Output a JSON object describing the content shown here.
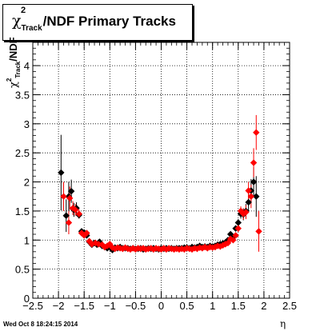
{
  "chart_data": {
    "type": "scatter",
    "title_main": "/NDF  Primary Tracks",
    "title_symbol": "χ",
    "title_sup": "2",
    "title_sub": "Track",
    "ylabel_symbol": "χ",
    "ylabel_sup": "2",
    "ylabel_sub": "Track",
    "ylabel_rest": "/NDF",
    "xlabel": "η",
    "xlim": [
      -2.5,
      2.5
    ],
    "ylim": [
      0,
      4.4
    ],
    "xticks": [
      -2.5,
      -2,
      -1.5,
      -1,
      -0.5,
      0,
      0.5,
      1,
      1.5,
      2,
      2.5
    ],
    "xtick_labels": [
      "−2.5",
      "−2",
      "−1.5",
      "−1",
      "−0.5",
      "0",
      "0.5",
      "1",
      "1.5",
      "2",
      "2.5"
    ],
    "yticks": [
      0,
      0.5,
      1,
      1.5,
      2,
      2.5,
      3,
      3.5,
      4
    ],
    "ytick_labels": [
      "0",
      "0.5",
      "1",
      "1.5",
      "2",
      "2.5",
      "3",
      "3.5",
      "4"
    ],
    "grid": true,
    "series": [
      {
        "color": "#000000",
        "points": [
          [
            -1.95,
            2.16,
            0.65
          ],
          [
            -1.85,
            1.42,
            0.28
          ],
          [
            -1.8,
            1.75,
            0.25
          ],
          [
            -1.75,
            1.84,
            0.2
          ],
          [
            -1.7,
            1.52,
            0.12
          ],
          [
            -1.65,
            1.55,
            0.1
          ],
          [
            -1.6,
            1.43,
            0.06
          ],
          [
            -1.55,
            1.15,
            0.05
          ],
          [
            -1.5,
            1.13,
            0.04
          ],
          [
            -1.45,
            1.08,
            0.03
          ],
          [
            -1.4,
            0.97,
            0.03
          ],
          [
            -1.35,
            0.92,
            0.03
          ],
          [
            -1.3,
            0.95,
            0.02
          ],
          [
            -1.25,
            0.92,
            0.02
          ],
          [
            -1.2,
            0.97,
            0.02
          ],
          [
            -1.15,
            0.9,
            0.02
          ],
          [
            -1.1,
            0.88,
            0.02
          ],
          [
            -1.05,
            0.86,
            0.02
          ],
          [
            -1.0,
            0.9,
            0.02
          ],
          [
            -0.95,
            0.83,
            0.02
          ],
          [
            -0.9,
            0.87,
            0.02
          ],
          [
            -0.85,
            0.86,
            0.02
          ],
          [
            -0.8,
            0.88,
            0.02
          ],
          [
            -0.75,
            0.86,
            0.02
          ],
          [
            -0.7,
            0.86,
            0.02
          ],
          [
            -0.65,
            0.86,
            0.02
          ],
          [
            -0.6,
            0.85,
            0.02
          ],
          [
            -0.55,
            0.86,
            0.02
          ],
          [
            -0.5,
            0.85,
            0.02
          ],
          [
            -0.45,
            0.85,
            0.02
          ],
          [
            -0.4,
            0.86,
            0.02
          ],
          [
            -0.35,
            0.84,
            0.02
          ],
          [
            -0.3,
            0.85,
            0.02
          ],
          [
            -0.25,
            0.86,
            0.02
          ],
          [
            -0.2,
            0.85,
            0.02
          ],
          [
            -0.15,
            0.86,
            0.02
          ],
          [
            -0.1,
            0.85,
            0.02
          ],
          [
            -0.05,
            0.84,
            0.02
          ],
          [
            0.0,
            0.86,
            0.02
          ],
          [
            0.05,
            0.85,
            0.02
          ],
          [
            0.1,
            0.86,
            0.02
          ],
          [
            0.15,
            0.85,
            0.02
          ],
          [
            0.2,
            0.86,
            0.02
          ],
          [
            0.25,
            0.85,
            0.02
          ],
          [
            0.3,
            0.86,
            0.02
          ],
          [
            0.35,
            0.86,
            0.02
          ],
          [
            0.4,
            0.86,
            0.02
          ],
          [
            0.45,
            0.87,
            0.02
          ],
          [
            0.5,
            0.87,
            0.02
          ],
          [
            0.55,
            0.86,
            0.02
          ],
          [
            0.6,
            0.88,
            0.02
          ],
          [
            0.65,
            0.87,
            0.02
          ],
          [
            0.7,
            0.88,
            0.02
          ],
          [
            0.75,
            0.9,
            0.02
          ],
          [
            0.8,
            0.88,
            0.02
          ],
          [
            0.85,
            0.89,
            0.02
          ],
          [
            0.9,
            0.88,
            0.02
          ],
          [
            0.95,
            0.9,
            0.02
          ],
          [
            1.0,
            0.89,
            0.02
          ],
          [
            1.05,
            0.9,
            0.02
          ],
          [
            1.1,
            0.92,
            0.02
          ],
          [
            1.15,
            0.93,
            0.02
          ],
          [
            1.2,
            0.94,
            0.02
          ],
          [
            1.25,
            0.96,
            0.02
          ],
          [
            1.3,
            1.0,
            0.03
          ],
          [
            1.35,
            1.1,
            0.03
          ],
          [
            1.4,
            1.05,
            0.04
          ],
          [
            1.45,
            1.2,
            0.05
          ],
          [
            1.5,
            1.3,
            0.06
          ],
          [
            1.55,
            1.45,
            0.08
          ],
          [
            1.6,
            1.44,
            0.1
          ],
          [
            1.65,
            1.5,
            0.12
          ],
          [
            1.7,
            1.65,
            0.15
          ],
          [
            1.75,
            1.85,
            0.2
          ],
          [
            1.8,
            2.0,
            0.25
          ],
          [
            1.85,
            1.75,
            0.35
          ]
        ]
      },
      {
        "color": "#ff0000",
        "points": [
          [
            -1.9,
            1.75,
            0.25
          ],
          [
            -1.8,
            1.3,
            0.2
          ],
          [
            -1.78,
            1.72,
            0.2
          ],
          [
            -1.72,
            1.55,
            0.12
          ],
          [
            -1.67,
            1.52,
            0.1
          ],
          [
            -1.6,
            1.45,
            0.08
          ],
          [
            -1.55,
            1.12,
            0.05
          ],
          [
            -1.5,
            1.08,
            0.04
          ],
          [
            -1.45,
            1.12,
            0.03
          ],
          [
            -1.4,
            0.98,
            0.03
          ],
          [
            -1.35,
            0.93,
            0.03
          ],
          [
            -1.28,
            0.95,
            0.02
          ],
          [
            -1.22,
            0.93,
            0.02
          ],
          [
            -1.15,
            0.92,
            0.02
          ],
          [
            -1.1,
            0.88,
            0.02
          ],
          [
            -1.05,
            0.9,
            0.02
          ],
          [
            -1.0,
            0.93,
            0.02
          ],
          [
            -0.95,
            0.87,
            0.02
          ],
          [
            -0.9,
            0.85,
            0.02
          ],
          [
            -0.85,
            0.87,
            0.02
          ],
          [
            -0.8,
            0.86,
            0.02
          ],
          [
            -0.75,
            0.85,
            0.02
          ],
          [
            -0.7,
            0.87,
            0.02
          ],
          [
            -0.65,
            0.85,
            0.02
          ],
          [
            -0.6,
            0.84,
            0.02
          ],
          [
            -0.55,
            0.86,
            0.02
          ],
          [
            -0.5,
            0.84,
            0.02
          ],
          [
            -0.45,
            0.86,
            0.02
          ],
          [
            -0.4,
            0.85,
            0.02
          ],
          [
            -0.35,
            0.86,
            0.02
          ],
          [
            -0.3,
            0.84,
            0.02
          ],
          [
            -0.25,
            0.85,
            0.02
          ],
          [
            -0.2,
            0.86,
            0.02
          ],
          [
            -0.15,
            0.84,
            0.02
          ],
          [
            -0.1,
            0.86,
            0.02
          ],
          [
            -0.05,
            0.85,
            0.02
          ],
          [
            0.0,
            0.84,
            0.02
          ],
          [
            0.05,
            0.86,
            0.02
          ],
          [
            0.1,
            0.84,
            0.02
          ],
          [
            0.15,
            0.86,
            0.02
          ],
          [
            0.2,
            0.85,
            0.02
          ],
          [
            0.25,
            0.84,
            0.02
          ],
          [
            0.3,
            0.85,
            0.02
          ],
          [
            0.35,
            0.84,
            0.02
          ],
          [
            0.4,
            0.85,
            0.02
          ],
          [
            0.45,
            0.84,
            0.02
          ],
          [
            0.5,
            0.86,
            0.02
          ],
          [
            0.55,
            0.85,
            0.02
          ],
          [
            0.6,
            0.84,
            0.02
          ],
          [
            0.65,
            0.86,
            0.02
          ],
          [
            0.7,
            0.85,
            0.02
          ],
          [
            0.75,
            0.87,
            0.02
          ],
          [
            0.8,
            0.86,
            0.02
          ],
          [
            0.85,
            0.88,
            0.02
          ],
          [
            0.9,
            0.86,
            0.02
          ],
          [
            0.95,
            0.88,
            0.02
          ],
          [
            1.0,
            0.87,
            0.02
          ],
          [
            1.05,
            0.88,
            0.02
          ],
          [
            1.1,
            0.9,
            0.02
          ],
          [
            1.15,
            0.89,
            0.02
          ],
          [
            1.2,
            0.91,
            0.02
          ],
          [
            1.25,
            0.93,
            0.02
          ],
          [
            1.3,
            0.95,
            0.03
          ],
          [
            1.35,
            1.02,
            0.03
          ],
          [
            1.4,
            1.0,
            0.04
          ],
          [
            1.45,
            1.08,
            0.05
          ],
          [
            1.5,
            1.2,
            0.06
          ],
          [
            1.55,
            1.5,
            0.08
          ],
          [
            1.6,
            1.45,
            0.1
          ],
          [
            1.65,
            1.48,
            0.12
          ],
          [
            1.7,
            1.85,
            0.15
          ],
          [
            1.75,
            1.75,
            0.2
          ],
          [
            1.8,
            2.33,
            0.25
          ],
          [
            1.85,
            2.85,
            0.3
          ],
          [
            1.9,
            1.15,
            0.35
          ]
        ]
      }
    ]
  },
  "datestamp": "Wed Oct  8 18:24:15 2014"
}
